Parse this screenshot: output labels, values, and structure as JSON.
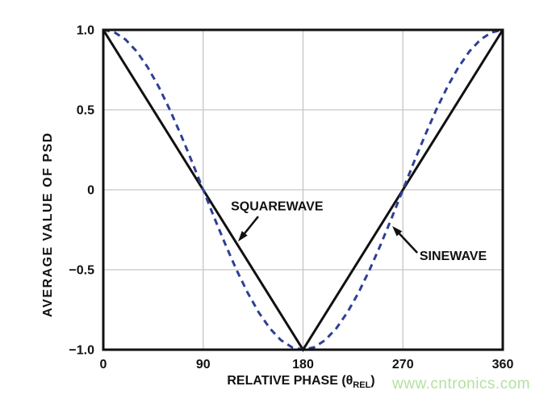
{
  "chart_data": {
    "type": "line",
    "title": "",
    "xlabel": "RELATIVE PHASE (θREL)",
    "xlabel_parts": {
      "prefix": "RELATIVE PHASE (",
      "symbol": "θ",
      "subscript": "REL",
      "suffix": ")"
    },
    "ylabel": "AVERAGE VALUE OF PSD",
    "xlim": [
      0,
      360
    ],
    "ylim": [
      -1,
      1
    ],
    "grid": true,
    "legend_position": "none",
    "x_ticks": [
      {
        "value": 0,
        "label": "0"
      },
      {
        "value": 90,
        "label": "90"
      },
      {
        "value": 180,
        "label": "180"
      },
      {
        "value": 270,
        "label": "270"
      },
      {
        "value": 360,
        "label": "360"
      }
    ],
    "y_ticks": [
      {
        "value": 1,
        "label": "1.0"
      },
      {
        "value": 0.5,
        "label": "0.5"
      },
      {
        "value": 0,
        "label": "0"
      },
      {
        "value": -0.5,
        "label": "−0.5"
      },
      {
        "value": -1,
        "label": "−1.0"
      }
    ],
    "colors": {
      "grid": "#c6c6c6",
      "axis": "#111111"
    },
    "series": [
      {
        "name": "SQUAREWAVE",
        "color": "#111111",
        "style": "solid",
        "width": 3,
        "x": [
          0,
          180,
          360
        ],
        "y": [
          1,
          -1,
          1
        ]
      },
      {
        "name": "SINEWAVE",
        "color": "#2e3f94",
        "style": "dashed",
        "width": 3,
        "x": [
          0,
          10,
          20,
          30,
          40,
          50,
          60,
          70,
          80,
          90,
          100,
          110,
          120,
          130,
          140,
          150,
          160,
          170,
          180,
          190,
          200,
          210,
          220,
          230,
          240,
          250,
          260,
          270,
          280,
          290,
          300,
          310,
          320,
          330,
          340,
          350,
          360
        ],
        "y": [
          1,
          0.985,
          0.94,
          0.866,
          0.766,
          0.643,
          0.5,
          0.342,
          0.174,
          0,
          -0.174,
          -0.342,
          -0.5,
          -0.643,
          -0.766,
          -0.866,
          -0.94,
          -0.985,
          -1,
          -0.985,
          -0.94,
          -0.866,
          -0.766,
          -0.643,
          -0.5,
          -0.342,
          -0.174,
          0,
          0.174,
          0.342,
          0.5,
          0.643,
          0.766,
          0.866,
          0.94,
          0.985,
          1
        ]
      }
    ],
    "annotations": [
      {
        "text": "SQUAREWAVE",
        "text_x": 115,
        "text_y": -0.13,
        "arrow": {
          "from_x": 139.6,
          "from_y": -0.167,
          "to_x": 121.5,
          "to_y": -0.323
        }
      },
      {
        "text": "SINEWAVE",
        "text_x": 285,
        "text_y": -0.44,
        "arrow": {
          "from_x": 283,
          "from_y": -0.394,
          "to_x": 260.4,
          "to_y": -0.227
        }
      }
    ]
  },
  "watermark": {
    "text": "www.cntronics.com",
    "color": "#b2e2a0"
  }
}
